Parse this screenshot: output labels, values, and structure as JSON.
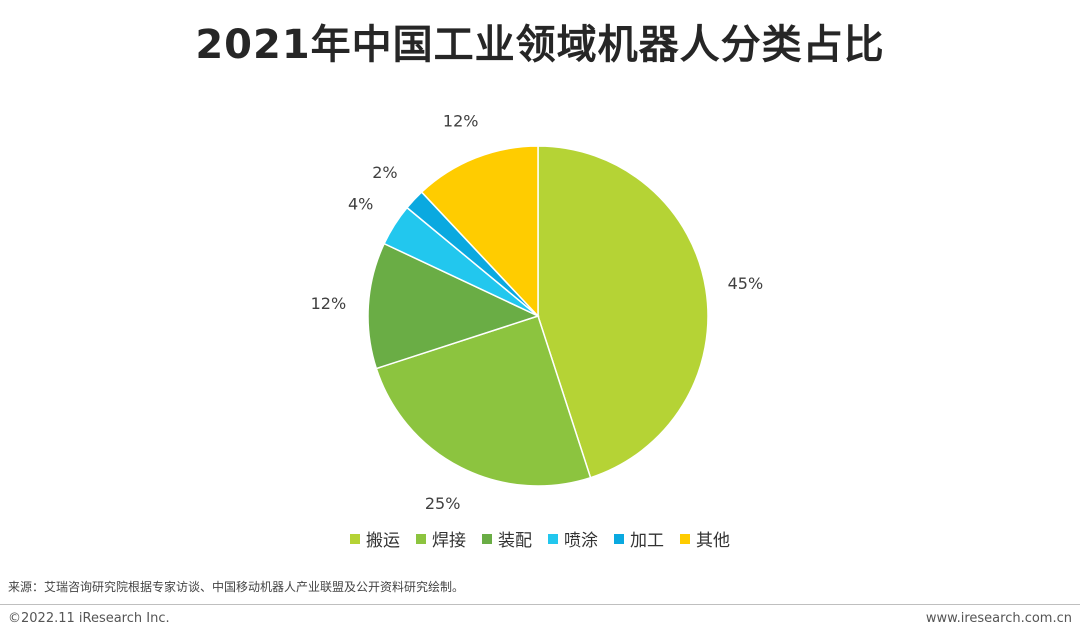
{
  "title": "2021年中国工业领域机器人分类占比",
  "chart_data": {
    "type": "pie",
    "categories": [
      "搬运",
      "焊接",
      "装配",
      "喷涂",
      "加工",
      "其他"
    ],
    "values": [
      45,
      25,
      12,
      4,
      2,
      12
    ],
    "labels": [
      "45%",
      "25%",
      "12%",
      "4%",
      "2%",
      "12%"
    ],
    "colors": [
      "#b5d335",
      "#8cc43f",
      "#6aad45",
      "#22c7ee",
      "#0aa9e0",
      "#ffcc00"
    ],
    "start": "12 o'clock",
    "direction": "clockwise",
    "legend_position": "bottom"
  },
  "footer": {
    "source": "来源：艾瑞咨询研究院根据专家访谈、中国移动机器人产业联盟及公开资料研究绘制。",
    "copyright": "©2022.11 iResearch Inc.",
    "website": "www.iresearch.com.cn"
  }
}
